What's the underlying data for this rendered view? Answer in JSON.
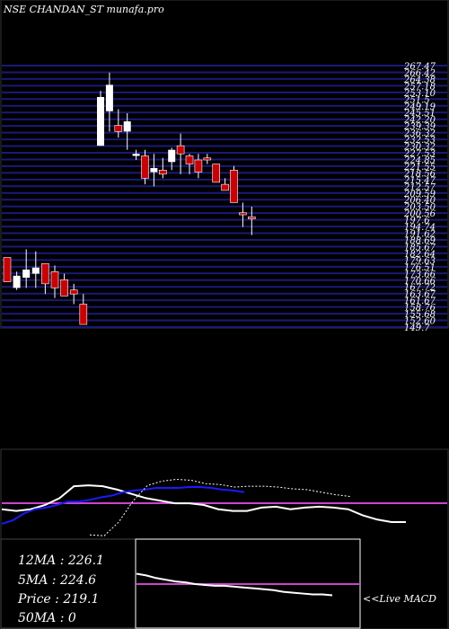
{
  "chart_data": [
    {
      "type": "candlestick",
      "title": "NSE CHANDAN_ST munafa.pro",
      "ylim": [
        138.7,
        267.47
      ],
      "grid": true,
      "price_labels": [
        "267.47",
        "266.42",
        "264.38",
        "257.18",
        "253.10",
        "251.5",
        "249.19",
        "245.51",
        "242.20",
        "239.39",
        "236.32",
        "232.53",
        "230.32",
        "227.53",
        "224.85",
        "221.55",
        "218.56",
        "215.47",
        "212.57",
        "209.59",
        "206.40",
        "203.50",
        "200.56",
        "197.6",
        "194.74",
        "191.62",
        "188.69",
        "185.67",
        "182.64",
        "179.63",
        "176.51",
        "173.66",
        "170.66",
        "167.72",
        "163.67",
        "161.67",
        "158.76",
        "155.68",
        "152.60",
        "149.7"
      ],
      "candles": [
        {
          "open": 173,
          "high": 173,
          "low": 161,
          "close": 161
        },
        {
          "open": 158,
          "high": 166,
          "low": 157,
          "close": 164
        },
        {
          "open": 163,
          "high": 177,
          "low": 158,
          "close": 167
        },
        {
          "open": 165,
          "high": 176,
          "low": 158,
          "close": 168
        },
        {
          "open": 170,
          "high": 170,
          "low": 155,
          "close": 160
        },
        {
          "open": 166,
          "high": 169,
          "low": 153,
          "close": 158
        },
        {
          "open": 162,
          "high": 165,
          "low": 154,
          "close": 154
        },
        {
          "open": 157,
          "high": 160,
          "low": 150,
          "close": 155
        },
        {
          "open": 150,
          "high": 155,
          "low": 140,
          "close": 140
        },
        {
          "open": 228,
          "high": 255,
          "low": 228,
          "close": 252
        },
        {
          "open": 245,
          "high": 264,
          "low": 235,
          "close": 258
        },
        {
          "open": 238,
          "high": 246,
          "low": 232,
          "close": 235
        },
        {
          "open": 235,
          "high": 244,
          "low": 226,
          "close": 240
        },
        {
          "open": 223,
          "high": 226,
          "low": 221,
          "close": 224
        },
        {
          "open": 223,
          "high": 226,
          "low": 209,
          "close": 212
        },
        {
          "open": 215,
          "high": 224,
          "low": 208,
          "close": 217
        },
        {
          "open": 216,
          "high": 222,
          "low": 212,
          "close": 214
        },
        {
          "open": 220,
          "high": 227,
          "low": 216,
          "close": 226
        },
        {
          "open": 228,
          "high": 234,
          "low": 214,
          "close": 224
        },
        {
          "open": 223,
          "high": 224,
          "low": 214,
          "close": 219
        },
        {
          "open": 221,
          "high": 224,
          "low": 212,
          "close": 215
        },
        {
          "open": 222,
          "high": 224,
          "low": 219,
          "close": 221
        },
        {
          "open": 219,
          "high": 219,
          "low": 210,
          "close": 210
        },
        {
          "open": 209,
          "high": 212,
          "low": 206,
          "close": 206
        },
        {
          "open": 216,
          "high": 218,
          "low": 200,
          "close": 200
        },
        {
          "open": 195,
          "high": 200,
          "low": 188,
          "close": 194
        },
        {
          "open": 193,
          "high": 198,
          "low": 184,
          "close": 192
        }
      ]
    },
    {
      "type": "line",
      "title": "",
      "series": [
        {
          "color": "#ffffff",
          "values": [
            35,
            33,
            35,
            40,
            48,
            62,
            63,
            62,
            58,
            53,
            48,
            45,
            42,
            42,
            40,
            35,
            33,
            33,
            37,
            38,
            35,
            37,
            38,
            37,
            35,
            28,
            23,
            20,
            20
          ]
        },
        {
          "color": "#1a1aff",
          "values": [
            18,
            22,
            30,
            35,
            37,
            40,
            44,
            44,
            46,
            49,
            51,
            55,
            57,
            58,
            60,
            60,
            60,
            61,
            61,
            60,
            58,
            57,
            55
          ]
        },
        {
          "color": "#ffffff",
          "values": [
            5,
            4,
            20,
            45,
            63,
            68,
            70,
            69,
            65,
            64,
            61,
            62,
            62,
            61,
            59,
            58,
            55,
            52,
            50
          ]
        }
      ],
      "reference_line": "#cc44cc"
    },
    {
      "type": "line",
      "title": "",
      "series": [
        {
          "color": "#ffffff",
          "values": [
            62,
            60,
            57,
            55,
            53,
            52,
            50,
            49,
            48,
            48,
            47,
            46,
            45,
            44,
            43,
            41,
            40,
            39,
            38,
            38,
            37
          ]
        }
      ],
      "reference_line": "#cc44cc"
    }
  ],
  "indicators": {
    "ma12": "12MA : 226.1",
    "ma5": "5MA : 224.6",
    "price": "Price   : 219.1",
    "ma50": "50MA : 0"
  },
  "macd_label": "<<Live MACD",
  "colors": {
    "background": "#000000",
    "grid": "#1a1a7a",
    "bull": "#ffffff",
    "bear": "#cc0000",
    "reference": "#cc44cc"
  }
}
